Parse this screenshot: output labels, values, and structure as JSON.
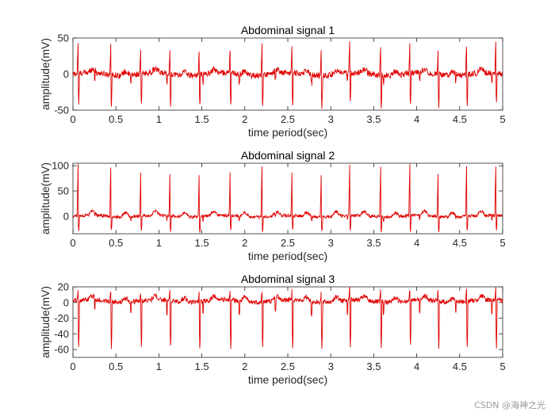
{
  "colors": {
    "trace": "#e00000",
    "axis": "#262626",
    "background": "#ffffff"
  },
  "watermark": "CSDN @海神之光",
  "chart_data": [
    {
      "type": "line",
      "title": "Abdominal signal 1",
      "xlabel": "time period(sec)",
      "ylabel": "amplitude(mV)",
      "xlim": [
        0,
        5
      ],
      "ylim": [
        -50,
        50
      ],
      "xticks": [
        0,
        0.5,
        1,
        1.5,
        2,
        2.5,
        3,
        3.5,
        4,
        4.5,
        5
      ],
      "xtick_labels": [
        "0",
        "0.5",
        "1",
        "1.5",
        "2",
        "2.5",
        "3",
        "3.5",
        "4",
        "4.5",
        "5"
      ],
      "yticks": [
        -50,
        0,
        50
      ],
      "ytick_labels": [
        "-50",
        "0",
        "50"
      ],
      "series": [
        {
          "name": "Abdominal signal 1",
          "color": "#e00000",
          "description": "noisy abdominal ECG around 0 mV; maternal QRS complexes reach about +40 to +45 and -45 to -50 mV; smaller fetal beats interleaved",
          "beat_times": [
            0.06,
            0.44,
            0.79,
            1.13,
            1.47,
            1.83,
            2.2,
            2.55,
            2.89,
            3.22,
            3.58,
            3.92,
            4.25,
            4.58,
            4.92
          ],
          "beat_peak_high": 42,
          "beat_peak_low": -47,
          "baseline": 0,
          "noise_amplitude": 4
        }
      ]
    },
    {
      "type": "line",
      "title": "Abdominal signal 2",
      "xlabel": "time period(sec)",
      "ylabel": "amplitude(mV)",
      "xlim": [
        0,
        5
      ],
      "ylim": [
        -35,
        105
      ],
      "xticks": [
        0,
        0.5,
        1,
        1.5,
        2,
        2.5,
        3,
        3.5,
        4,
        4.5,
        5
      ],
      "xtick_labels": [
        "0",
        "0.5",
        "1",
        "1.5",
        "2",
        "2.5",
        "3",
        "3.5",
        "4",
        "4.5",
        "5"
      ],
      "yticks": [
        0,
        50,
        100
      ],
      "ytick_labels": [
        "0",
        "50",
        "100"
      ],
      "series": [
        {
          "name": "Abdominal signal 2",
          "color": "#e00000",
          "description": "abdominal ECG with tall maternal R peaks near +100 mV and dips to about -30 mV",
          "beat_times": [
            0.06,
            0.44,
            0.79,
            1.13,
            1.47,
            1.83,
            2.2,
            2.55,
            2.89,
            3.22,
            3.58,
            3.92,
            4.25,
            4.58,
            4.92
          ],
          "beat_peak_high": 100,
          "beat_peak_low": -32,
          "baseline": 0,
          "noise_amplitude": 3
        }
      ]
    },
    {
      "type": "line",
      "title": "Abdominal signal 3",
      "xlabel": "time period(sec)",
      "ylabel": "amplitude(mV)",
      "xlim": [
        0,
        5
      ],
      "ylim": [
        -70,
        20
      ],
      "xticks": [
        0,
        0.5,
        1,
        1.5,
        2,
        2.5,
        3,
        3.5,
        4,
        4.5,
        5
      ],
      "xtick_labels": [
        "0",
        "0.5",
        "1",
        "1.5",
        "2",
        "2.5",
        "3",
        "3.5",
        "4",
        "4.5",
        "5"
      ],
      "yticks": [
        -60,
        -40,
        -20,
        0,
        20
      ],
      "ytick_labels": [
        "-60",
        "-40",
        "-20",
        "0",
        "20"
      ],
      "series": [
        {
          "name": "Abdominal signal 3",
          "color": "#e00000",
          "description": "abdominal ECG with inverted maternal QRS reaching about -65 mV and small positive deflections up to about +15 mV",
          "beat_times": [
            0.06,
            0.44,
            0.79,
            1.13,
            1.47,
            1.83,
            2.2,
            2.55,
            2.89,
            3.22,
            3.58,
            3.92,
            4.25,
            4.58,
            4.92
          ],
          "beat_peak_high": 14,
          "beat_peak_low": -65,
          "baseline": 2,
          "noise_amplitude": 3
        }
      ]
    }
  ]
}
